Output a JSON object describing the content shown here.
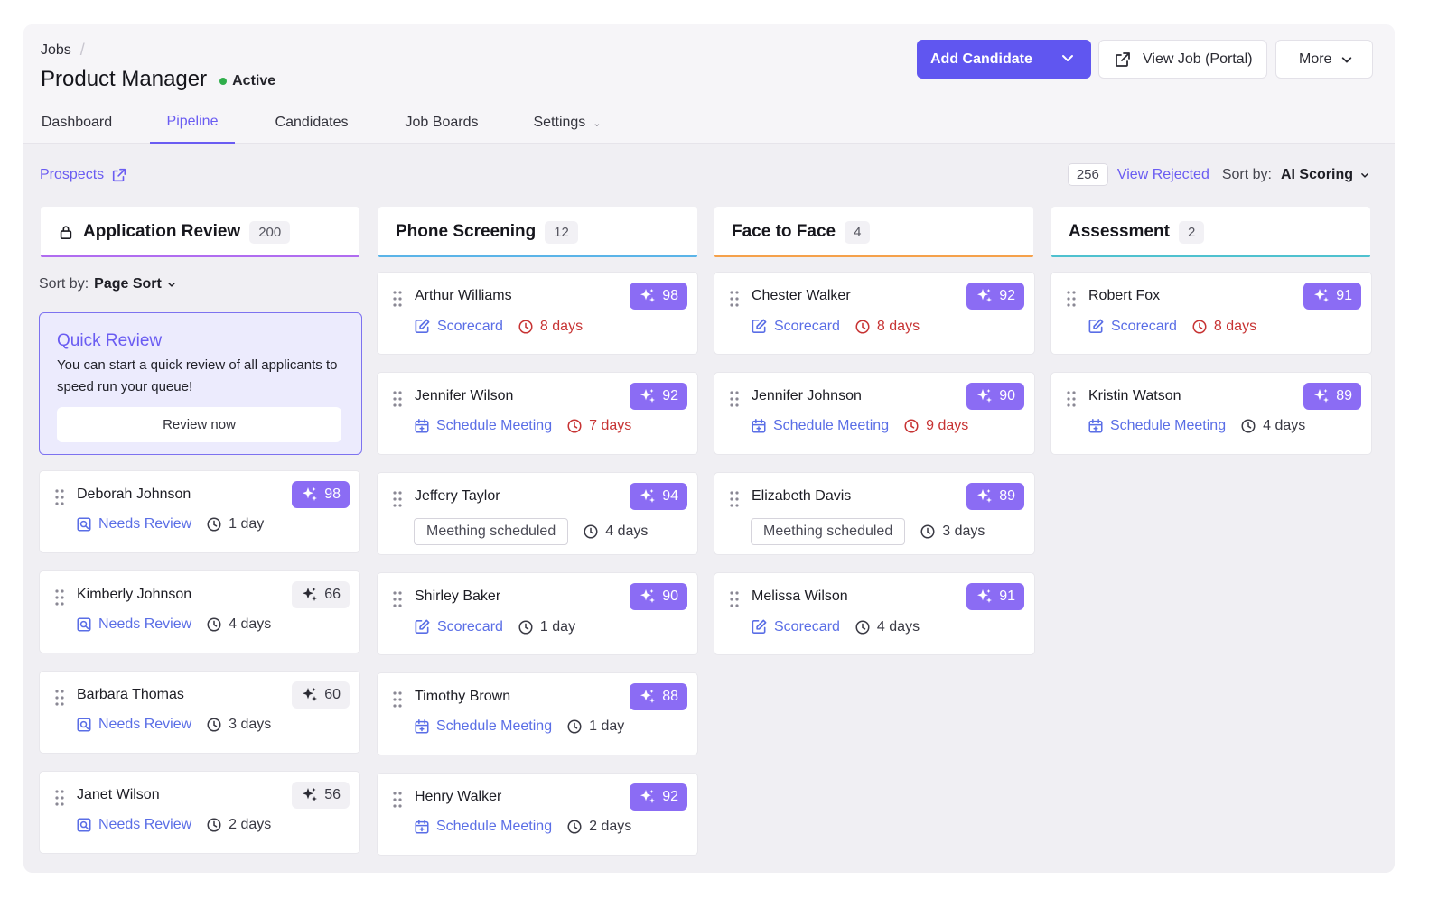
{
  "breadcrumb": {
    "jobs": "Jobs",
    "separator": "/"
  },
  "job": {
    "title": "Product Manager",
    "status": "Active",
    "status_color": "#2fae4b"
  },
  "tabs": [
    {
      "label": "Dashboard"
    },
    {
      "label": "Pipeline",
      "active": true
    },
    {
      "label": "Candidates"
    },
    {
      "label": "Job Boards"
    },
    {
      "label": "Settings"
    }
  ],
  "actions": {
    "add_candidate": "Add Candidate",
    "view_portal": "View Job (Portal)",
    "more": "More"
  },
  "toolbar": {
    "prospects": "Prospects",
    "rejected_count": "256",
    "view_rejected": "View Rejected",
    "sort_label": "Sort by:",
    "sort_value": "AI Scoring"
  },
  "accent_color": "#6056f0",
  "columns": [
    {
      "title": "Application Review",
      "count": "200",
      "bar_color": "#b06cf0",
      "icon": "lock-icon",
      "sort_label": "Sort by:",
      "sort_value": "Page Sort",
      "quick_review": {
        "title": "Quick Review",
        "text": "You can start a quick review of all applicants to speed run your queue!",
        "button": "Review now"
      },
      "cards": [
        {
          "name": "Deborah Johnson",
          "score": "98",
          "score_style": "hi",
          "action": "Needs Review",
          "action_icon": "review-icon",
          "time": "1 day",
          "time_red": false
        },
        {
          "name": "Kimberly Johnson",
          "score": "66",
          "score_style": "lo",
          "action": "Needs Review",
          "action_icon": "review-icon",
          "time": "4 days",
          "time_red": false
        },
        {
          "name": "Barbara Thomas",
          "score": "60",
          "score_style": "lo",
          "action": "Needs Review",
          "action_icon": "review-icon",
          "time": "3 days",
          "time_red": false
        },
        {
          "name": "Janet Wilson",
          "score": "56",
          "score_style": "lo",
          "action": "Needs Review",
          "action_icon": "review-icon",
          "time": "2 days",
          "time_red": false
        }
      ]
    },
    {
      "title": "Phone Screening",
      "count": "12",
      "bar_color": "#5ab4e8",
      "cards": [
        {
          "name": "Arthur Williams",
          "score": "98",
          "score_style": "hi",
          "action": "Scorecard",
          "action_icon": "edit-icon",
          "time": "8 days",
          "time_red": true
        },
        {
          "name": "Jennifer Wilson",
          "score": "92",
          "score_style": "hi",
          "action": "Schedule Meeting",
          "action_icon": "calendar-icon",
          "time": "7 days",
          "time_red": true
        },
        {
          "name": "Jeffery Taylor",
          "score": "94",
          "score_style": "hi",
          "action": "Meething scheduled",
          "action_icon": "none",
          "time": "4 days",
          "time_red": false
        },
        {
          "name": "Shirley Baker",
          "score": "90",
          "score_style": "hi",
          "action": "Scorecard",
          "action_icon": "edit-icon",
          "time": "1 day",
          "time_red": false
        },
        {
          "name": "Timothy Brown",
          "score": "88",
          "score_style": "hi",
          "action": "Schedule Meeting",
          "action_icon": "calendar-icon",
          "time": "1 day",
          "time_red": false
        },
        {
          "name": "Henry Walker",
          "score": "92",
          "score_style": "hi",
          "action": "Schedule Meeting",
          "action_icon": "calendar-icon",
          "time": "2 days",
          "time_red": false
        }
      ]
    },
    {
      "title": "Face to Face",
      "count": "4",
      "bar_color": "#f5a14b",
      "cards": [
        {
          "name": "Chester Walker",
          "score": "92",
          "score_style": "hi",
          "action": "Scorecard",
          "action_icon": "edit-icon",
          "time": "8 days",
          "time_red": true
        },
        {
          "name": "Jennifer Johnson",
          "score": "90",
          "score_style": "hi",
          "action": "Schedule Meeting",
          "action_icon": "calendar-icon",
          "time": "9 days",
          "time_red": true
        },
        {
          "name": "Elizabeth Davis",
          "score": "89",
          "score_style": "hi",
          "action": "Meething scheduled",
          "action_icon": "none",
          "time": "3 days",
          "time_red": false
        },
        {
          "name": "Melissa Wilson",
          "score": "91",
          "score_style": "hi",
          "action": "Scorecard",
          "action_icon": "edit-icon",
          "time": "4 days",
          "time_red": false
        }
      ]
    },
    {
      "title": "Assessment",
      "count": "2",
      "bar_color": "#4fc1cf",
      "cards": [
        {
          "name": "Robert Fox",
          "score": "91",
          "score_style": "hi",
          "action": "Scorecard",
          "action_icon": "edit-icon",
          "time": "8 days",
          "time_red": true
        },
        {
          "name": "Kristin Watson",
          "score": "89",
          "score_style": "hi",
          "action": "Schedule Meeting",
          "action_icon": "calendar-icon",
          "time": "4 days",
          "time_red": false
        }
      ]
    }
  ]
}
